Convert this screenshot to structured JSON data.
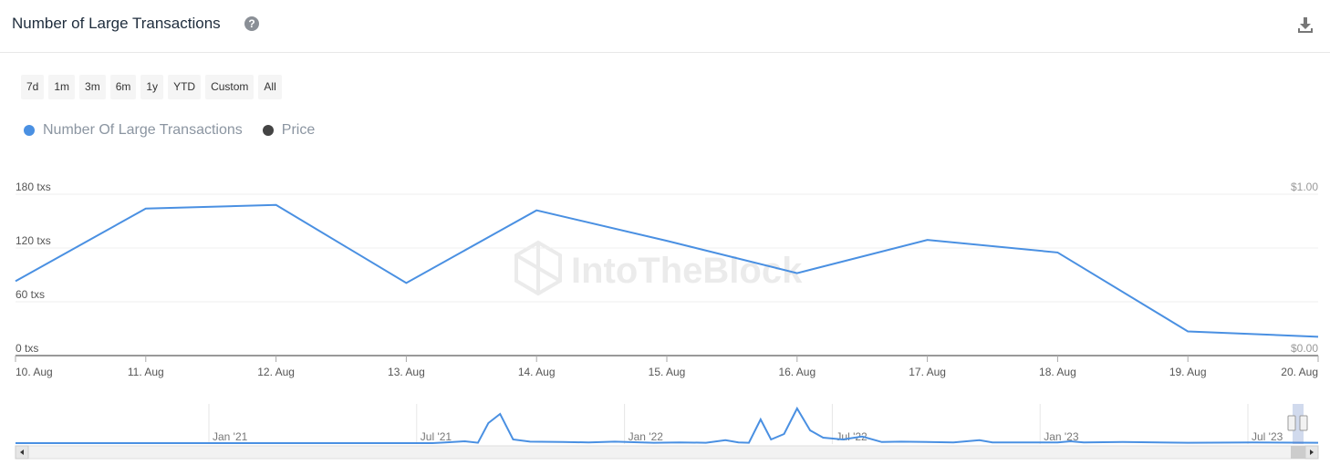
{
  "header": {
    "title": "Number of Large Transactions",
    "help_icon": "question-circle-icon",
    "download_icon": "download-icon"
  },
  "ranges": [
    "7d",
    "1m",
    "3m",
    "6m",
    "1y",
    "YTD",
    "Custom",
    "All"
  ],
  "legend": [
    {
      "name": "Number Of Large Transactions",
      "color": "#4a90e2"
    },
    {
      "name": "Price",
      "color": "#444444"
    }
  ],
  "watermark": "IntoTheBlock",
  "chart_data": {
    "type": "line",
    "x": [
      "10. Aug",
      "11. Aug",
      "12. Aug",
      "13. Aug",
      "14. Aug",
      "15. Aug",
      "16. Aug",
      "17. Aug",
      "18. Aug",
      "19. Aug",
      "20. Aug"
    ],
    "series": [
      {
        "name": "Number Of Large Transactions",
        "color": "#4a90e2",
        "values": [
          83,
          164,
          168,
          81,
          162,
          128,
          92,
          129,
          115,
          27,
          21
        ]
      }
    ],
    "y_left": {
      "ticks": [
        "0 txs",
        "60 txs",
        "120 txs",
        "180 txs"
      ],
      "tick_values": [
        0,
        60,
        120,
        180
      ],
      "ylim": [
        0,
        180
      ]
    },
    "y_right": {
      "ticks": [
        "$0.00",
        "$1.00"
      ],
      "ylim": [
        0,
        1
      ]
    },
    "grid": true,
    "legend_position": "top-left"
  },
  "navigator": {
    "labels": [
      "Jan '21",
      "Jul '21",
      "Jan '22",
      "Jul '22",
      "Jan '23",
      "Jul '23"
    ],
    "series": [
      [
        0,
        0
      ],
      [
        0.32,
        0
      ],
      [
        0.33,
        0.02
      ],
      [
        0.345,
        0.05
      ],
      [
        0.355,
        0.01
      ],
      [
        0.363,
        0.55
      ],
      [
        0.372,
        0.8
      ],
      [
        0.382,
        0.1
      ],
      [
        0.395,
        0.04
      ],
      [
        0.42,
        0.03
      ],
      [
        0.44,
        0.02
      ],
      [
        0.46,
        0.04
      ],
      [
        0.49,
        0.01
      ],
      [
        0.51,
        0.02
      ],
      [
        0.53,
        0.01
      ],
      [
        0.545,
        0.08
      ],
      [
        0.555,
        0.02
      ],
      [
        0.563,
        0.01
      ],
      [
        0.572,
        0.65
      ],
      [
        0.58,
        0.1
      ],
      [
        0.59,
        0.25
      ],
      [
        0.6,
        0.95
      ],
      [
        0.61,
        0.35
      ],
      [
        0.62,
        0.15
      ],
      [
        0.635,
        0.1
      ],
      [
        0.65,
        0.18
      ],
      [
        0.665,
        0.03
      ],
      [
        0.68,
        0.04
      ],
      [
        0.72,
        0.02
      ],
      [
        0.74,
        0.08
      ],
      [
        0.75,
        0.02
      ],
      [
        0.8,
        0.02
      ],
      [
        0.81,
        0.05
      ],
      [
        0.82,
        0.02
      ],
      [
        0.85,
        0.03
      ],
      [
        0.9,
        0.01
      ],
      [
        0.95,
        0.02
      ],
      [
        1.0,
        0.01
      ]
    ]
  }
}
